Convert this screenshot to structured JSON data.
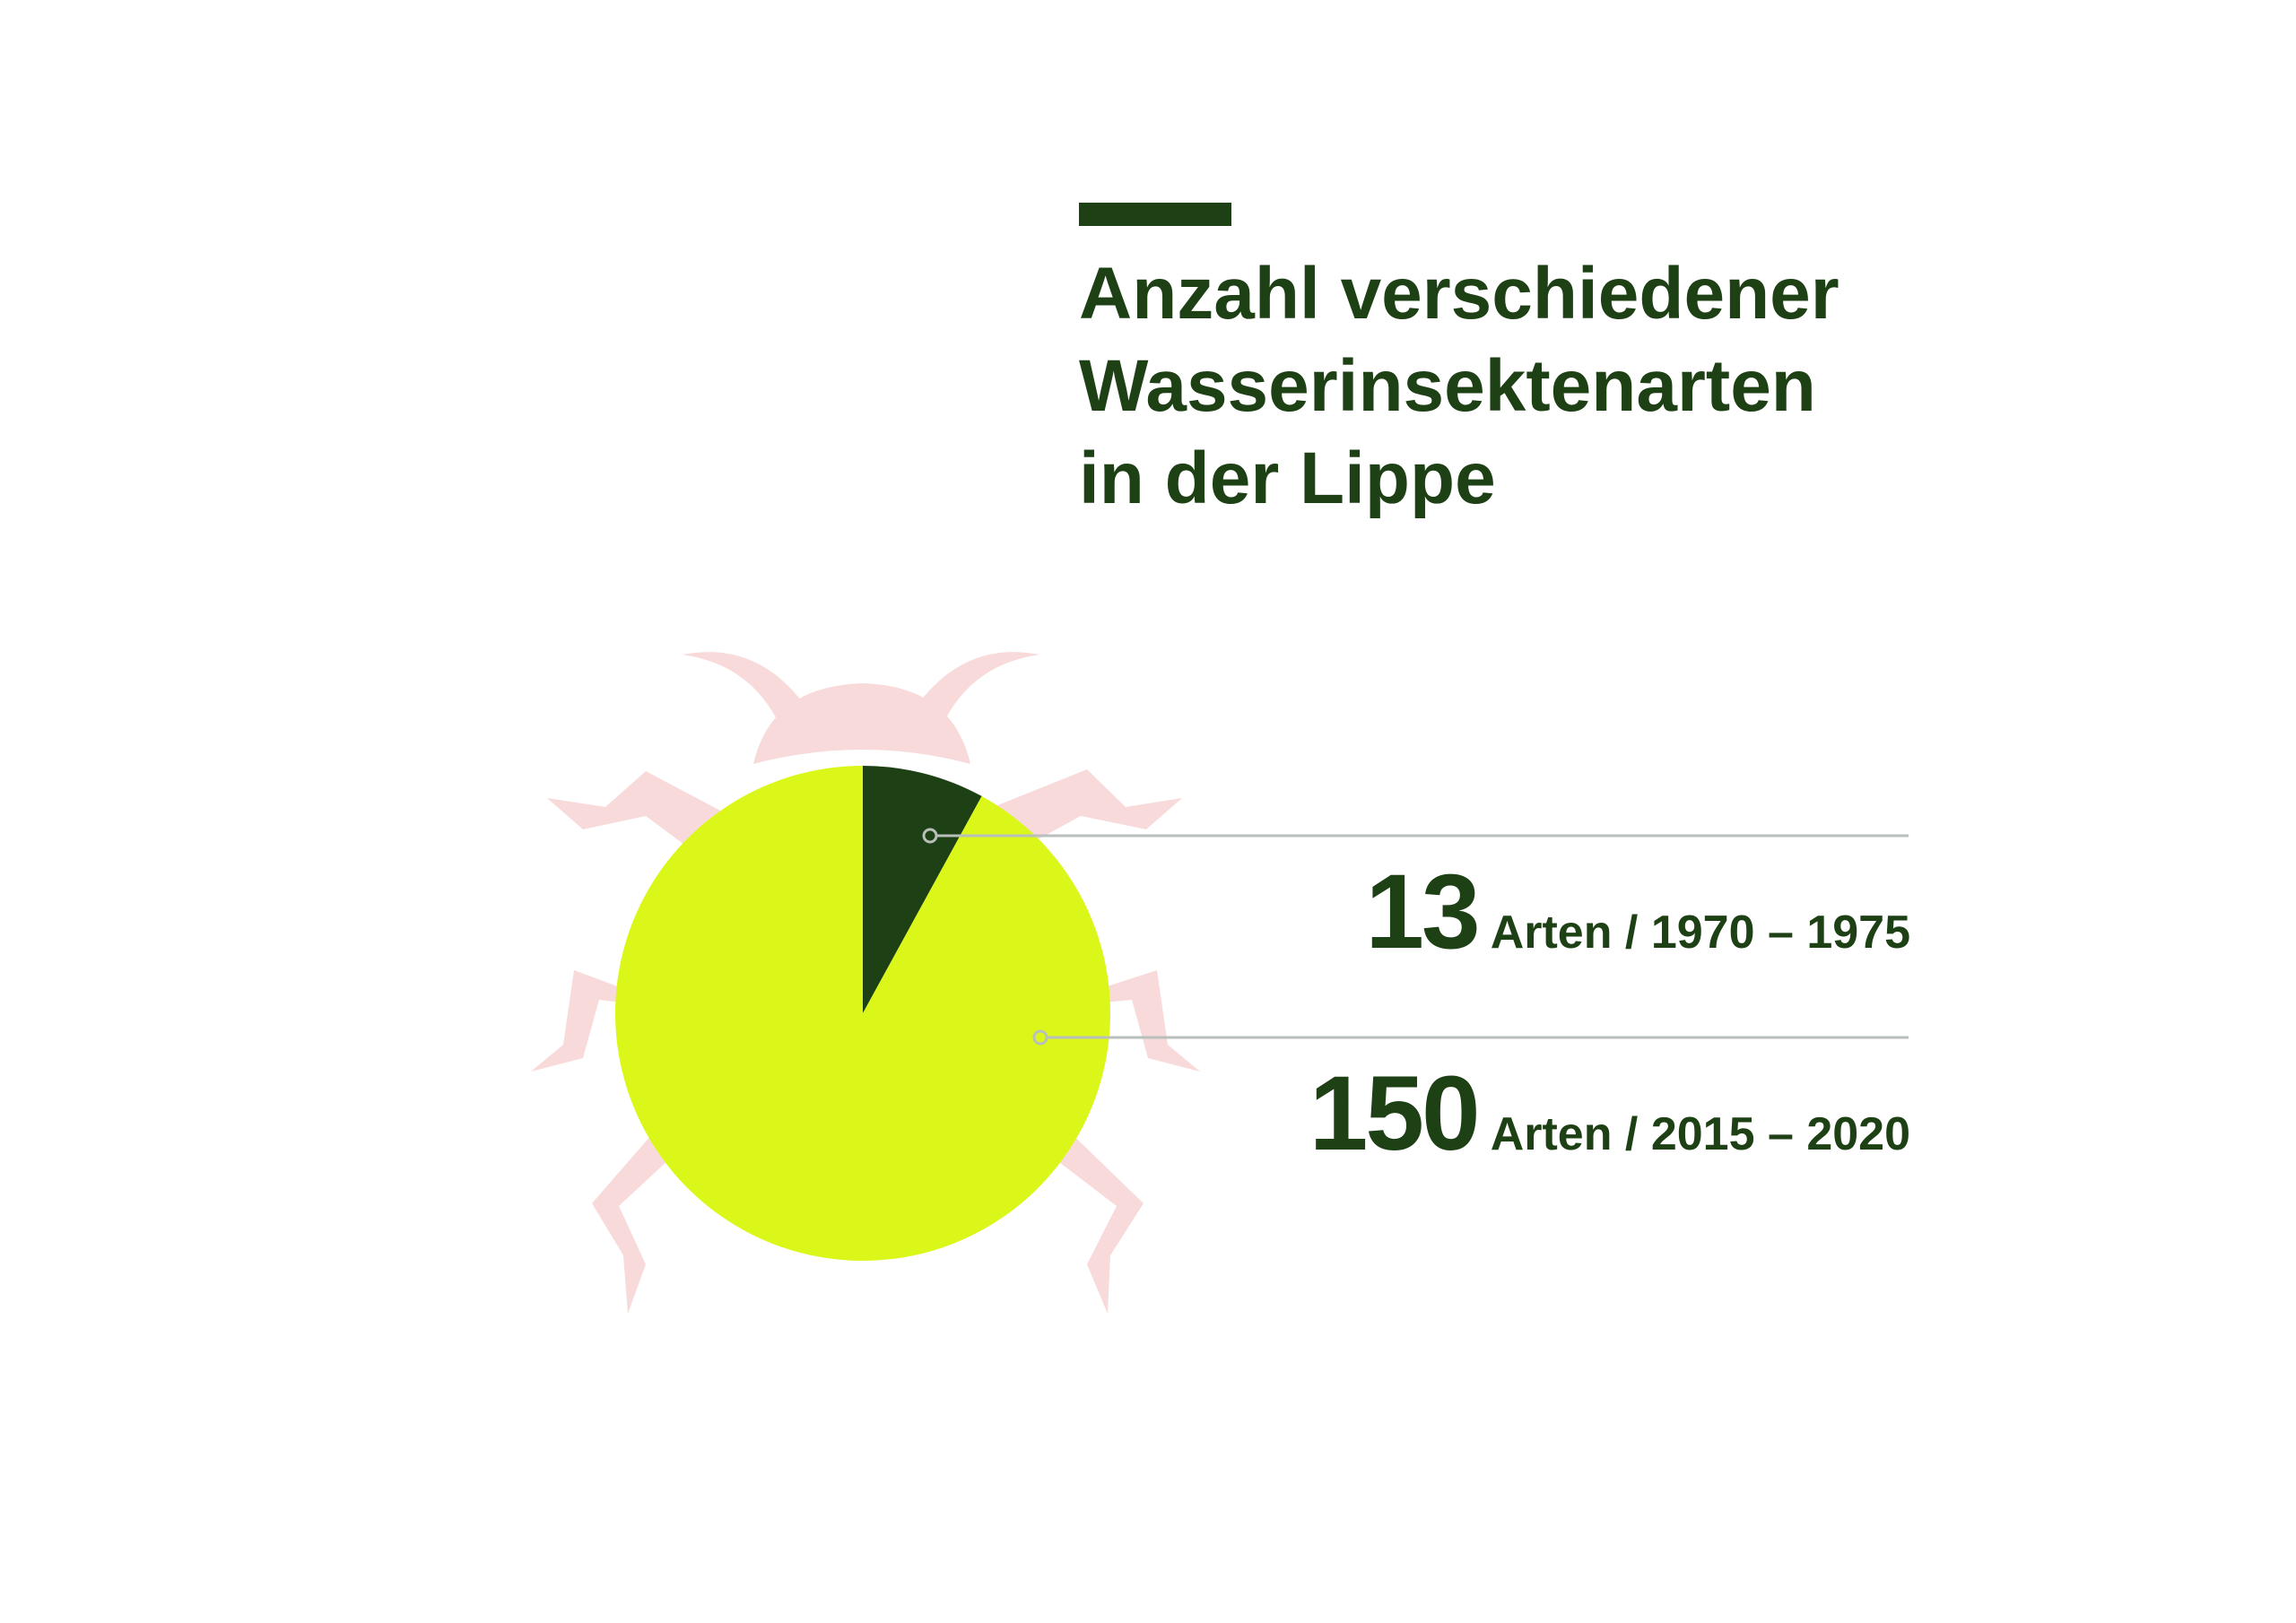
{
  "colors": {
    "dark_green": "#1e4015",
    "lime": "#dbf71a",
    "beetle": "#f8dada",
    "leader": "#b8bfbd",
    "background": "#ffffff"
  },
  "icons": {
    "background_illustration": "beetle-icon"
  },
  "chart_data": {
    "type": "pie",
    "title": "Anzahl verschiedener\nWasserinsektenarten\nin der Lippe",
    "slices": [
      {
        "value": 13,
        "unit": "Arten",
        "period": "1970 – 1975",
        "color": "#1e4015"
      },
      {
        "value": 150,
        "unit": "Arten",
        "period": "2015 – 2020",
        "color": "#dbf71a"
      }
    ],
    "labels": [
      {
        "number": "13",
        "text": "Arten / 1970 – 1975"
      },
      {
        "number": "150",
        "text": "Arten / 2015 – 2020"
      }
    ],
    "legend": "right",
    "grid": false
  }
}
